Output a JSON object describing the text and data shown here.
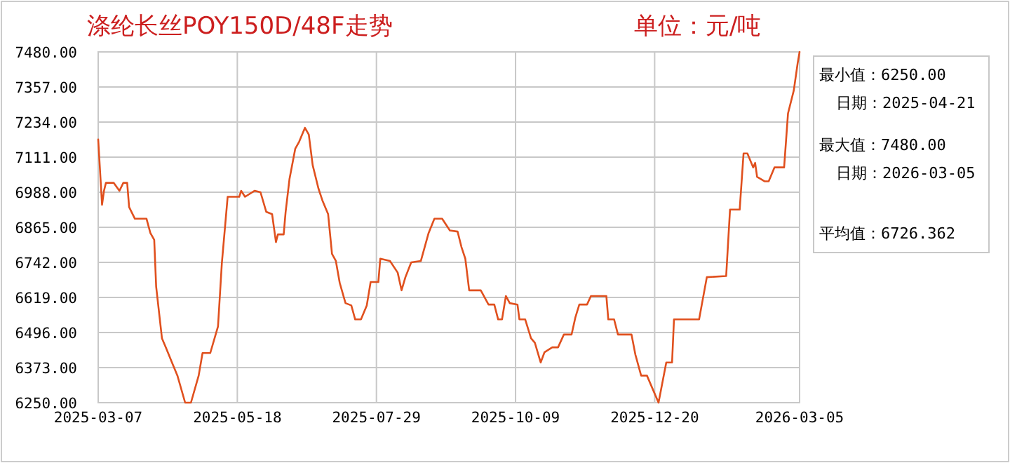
{
  "chart_data": {
    "type": "line",
    "title": "涤纶长丝POY150D/48F走势",
    "subtitle": "单位：元/吨",
    "annotations": [
      "最小值：6250.00",
      "日期：2025-04-21",
      "最大值：7480.00",
      "日期：2026-03-05",
      "平均值：6726.362"
    ],
    "x": [
      "2025-03-07",
      "2025-03-09",
      "2025-03-10",
      "2025-03-11",
      "2025-03-15",
      "2025-03-18",
      "2025-03-20",
      "2025-03-22",
      "2025-03-23",
      "2025-03-26",
      "2025-04-01",
      "2025-04-03",
      "2025-04-05",
      "2025-04-06",
      "2025-04-09",
      "2025-04-11",
      "2025-04-14",
      "2025-04-17",
      "2025-04-21",
      "2025-04-24",
      "2025-04-28",
      "2025-04-30",
      "2025-05-04",
      "2025-05-08",
      "2025-05-10",
      "2025-05-13",
      "2025-05-19",
      "2025-05-20",
      "2025-05-22",
      "2025-05-27",
      "2025-05-30",
      "2025-06-02",
      "2025-06-05",
      "2025-06-07",
      "2025-06-08",
      "2025-06-11",
      "2025-06-12",
      "2025-06-14",
      "2025-06-17",
      "2025-06-19",
      "2025-06-22",
      "2025-06-24",
      "2025-06-26",
      "2025-06-29",
      "2025-07-01",
      "2025-07-04",
      "2025-07-06",
      "2025-07-08",
      "2025-07-10",
      "2025-07-13",
      "2025-07-16",
      "2025-07-18",
      "2025-07-21",
      "2025-07-24",
      "2025-07-26",
      "2025-07-30",
      "2025-07-31",
      "2025-08-05",
      "2025-08-09",
      "2025-08-11",
      "2025-08-13",
      "2025-08-16",
      "2025-08-21",
      "2025-08-25",
      "2025-08-28",
      "2025-09-01",
      "2025-09-05",
      "2025-09-09",
      "2025-09-11",
      "2025-09-13",
      "2025-09-15",
      "2025-09-21",
      "2025-09-25",
      "2025-09-28",
      "2025-09-30",
      "2025-10-02",
      "2025-10-04",
      "2025-10-06",
      "2025-10-10",
      "2025-10-11",
      "2025-10-14",
      "2025-10-17",
      "2025-10-19",
      "2025-10-22",
      "2025-10-24",
      "2025-10-28",
      "2025-10-31",
      "2025-11-03",
      "2025-11-07",
      "2025-11-09",
      "2025-11-11",
      "2025-11-15",
      "2025-11-17",
      "2025-11-25",
      "2025-11-26",
      "2025-11-29",
      "2025-12-01",
      "2025-12-08",
      "2025-12-10",
      "2025-12-13",
      "2025-12-16",
      "2025-12-22",
      "2025-12-26",
      "2025-12-29",
      "2025-12-30",
      "2026-01-12",
      "2026-01-16",
      "2026-01-26",
      "2026-01-28",
      "2026-02-02",
      "2026-02-04",
      "2026-02-06",
      "2026-02-09",
      "2026-02-10",
      "2026-02-11",
      "2026-02-15",
      "2026-02-17",
      "2026-02-20",
      "2026-02-25",
      "2026-02-27",
      "2026-03-02",
      "2026-03-04",
      "2026-03-05"
    ],
    "series": [
      {
        "color": "#e0501e",
        "values": [
          7173,
          6944,
          6993,
          7021,
          7021,
          6993,
          7021,
          7021,
          6936,
          6895,
          6895,
          6845,
          6821,
          6657,
          6476,
          6444,
          6394,
          6345,
          6250,
          6250,
          6345,
          6424,
          6424,
          6517,
          6739,
          6972,
          6972,
          6993,
          6972,
          6993,
          6988,
          6919,
          6911,
          6813,
          6840,
          6840,
          6919,
          7034,
          7141,
          7165,
          7214,
          7190,
          7083,
          7001,
          6960,
          6911,
          6772,
          6747,
          6670,
          6599,
          6591,
          6542,
          6542,
          6591,
          6673,
          6673,
          6755,
          6747,
          6706,
          6644,
          6690,
          6742,
          6747,
          6845,
          6895,
          6895,
          6854,
          6850,
          6796,
          6755,
          6644,
          6644,
          6594,
          6594,
          6542,
          6542,
          6624,
          6599,
          6594,
          6542,
          6542,
          6476,
          6460,
          6391,
          6427,
          6444,
          6444,
          6489,
          6489,
          6550,
          6594,
          6594,
          6624,
          6624,
          6542,
          6542,
          6489,
          6489,
          6419,
          6345,
          6345,
          6250,
          6391,
          6391,
          6542,
          6542,
          6690,
          6694,
          6927,
          6927,
          7124,
          7124,
          7075,
          7091,
          7042,
          7026,
          7026,
          7075,
          7075,
          7264,
          7345,
          7440,
          7480
        ]
      }
    ],
    "xlim": [
      "2025-03-07",
      "2026-03-05"
    ],
    "xticks": [
      "2025-03-07",
      "2025-05-18",
      "2025-07-29",
      "2025-10-09",
      "2025-12-20",
      "2026-03-05"
    ],
    "ylim": [
      6250,
      7480
    ],
    "yticks": [
      {
        "value": 6250,
        "label": "6250.00"
      },
      {
        "value": 6373,
        "label": "6373.00"
      },
      {
        "value": 6496,
        "label": "6496.00"
      },
      {
        "value": 6619,
        "label": "6619.00"
      },
      {
        "value": 6742,
        "label": "6742.00"
      },
      {
        "value": 6865,
        "label": "6865.00"
      },
      {
        "value": 6988,
        "label": "6988.00"
      },
      {
        "value": 7111,
        "label": "7111.00"
      },
      {
        "value": 7234,
        "label": "7234.00"
      },
      {
        "value": 7357,
        "label": "7357.00"
      },
      {
        "value": 7480,
        "label": "7480.00"
      }
    ],
    "grid": true
  }
}
